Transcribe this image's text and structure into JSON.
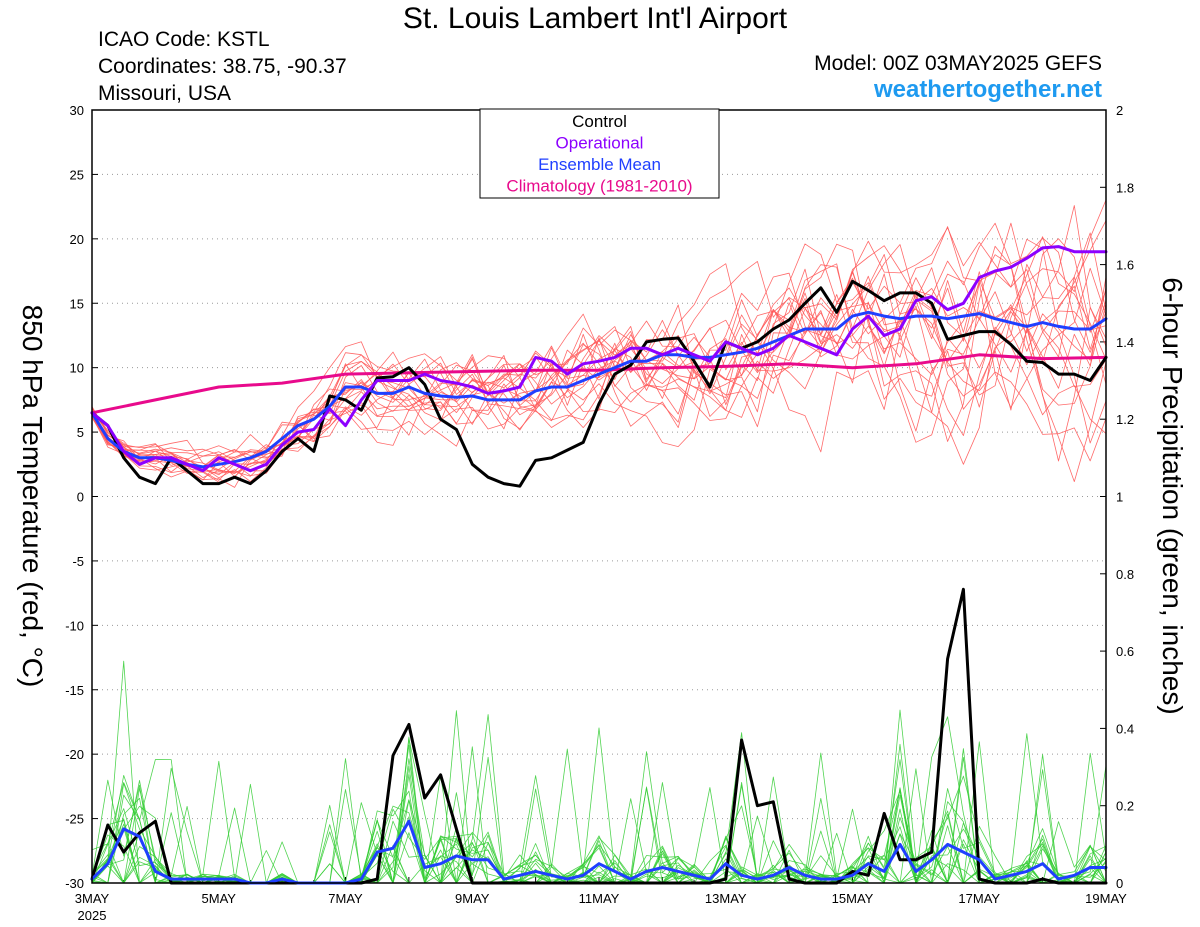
{
  "header": {
    "title": "St. Louis Lambert Int'l Airport",
    "icao": "ICAO Code: KSTL",
    "coords": "Coordinates: 38.75, -90.37",
    "region": "Missouri, USA",
    "model": "Model: 00Z 03MAY2025 GEFS",
    "site": "weathertogether.net"
  },
  "chart_data": {
    "type": "line",
    "ylabel_left": "850 hPa Temperature (red, °C)",
    "ylabel_right": "6-hour Precipitation (green, inches)",
    "x_unit": "days since 00Z 3 May 2025",
    "xlim": [
      0,
      16
    ],
    "ylim_left": [
      -30,
      30
    ],
    "ylim_right": [
      0,
      2
    ],
    "x_ticks": [
      {
        "x": 0,
        "label": "3MAY"
      },
      {
        "x": 2,
        "label": "5MAY"
      },
      {
        "x": 4,
        "label": "7MAY"
      },
      {
        "x": 6,
        "label": "9MAY"
      },
      {
        "x": 8,
        "label": "11MAY"
      },
      {
        "x": 10,
        "label": "13MAY"
      },
      {
        "x": 12,
        "label": "15MAY"
      },
      {
        "x": 14,
        "label": "17MAY"
      },
      {
        "x": 16,
        "label": "19MAY"
      }
    ],
    "x_year_label": "2025",
    "y_ticks_left": [
      "-30",
      "-25",
      "-20",
      "-15",
      "-10",
      "-5",
      "0",
      "5",
      "10",
      "15",
      "20",
      "25",
      "30"
    ],
    "y_ticks_right": [
      "0",
      "0.2",
      "0.4",
      "0.6",
      "0.8",
      "1",
      "1.2",
      "1.4",
      "1.6",
      "1.8",
      "2"
    ],
    "grid": "dotted horizontal",
    "legend": {
      "placement": "top-center",
      "entries": [
        {
          "label": "Control",
          "color": "#000000"
        },
        {
          "label": "Operational",
          "color": "#8c00ff"
        },
        {
          "label": "Ensemble Mean",
          "color": "#1f3fff"
        },
        {
          "label": "Climatology (1981-2010)",
          "color": "#e80a8c"
        }
      ]
    },
    "colors": {
      "members_temp": "#ff5a5a",
      "members_precip": "#33cc33",
      "control": "#000000",
      "operational": "#8c00ff",
      "mean": "#1f3fff",
      "climatology": "#e80a8c"
    },
    "temp_series": {
      "control": [
        [
          0,
          6.5
        ],
        [
          0.25,
          5.5
        ],
        [
          0.5,
          3
        ],
        [
          0.75,
          1.5
        ],
        [
          1,
          1
        ],
        [
          1.25,
          3
        ],
        [
          1.5,
          2
        ],
        [
          1.75,
          1
        ],
        [
          2,
          1
        ],
        [
          2.25,
          1.5
        ],
        [
          2.5,
          1
        ],
        [
          2.75,
          2
        ],
        [
          3,
          3.5
        ],
        [
          3.25,
          4.5
        ],
        [
          3.5,
          3.5
        ],
        [
          3.75,
          7.8
        ],
        [
          4,
          7.5
        ],
        [
          4.25,
          6.7
        ],
        [
          4.5,
          9.2
        ],
        [
          4.75,
          9.3
        ],
        [
          5,
          10
        ],
        [
          5.25,
          8.7
        ],
        [
          5.5,
          6
        ],
        [
          5.75,
          5.2
        ],
        [
          6,
          2.5
        ],
        [
          6.25,
          1.5
        ],
        [
          6.5,
          1
        ],
        [
          6.75,
          0.8
        ],
        [
          7,
          2.8
        ],
        [
          7.25,
          3
        ],
        [
          7.5,
          3.6
        ],
        [
          7.75,
          4.2
        ],
        [
          8,
          7.2
        ],
        [
          8.25,
          9.5
        ],
        [
          8.5,
          10.2
        ],
        [
          8.75,
          12
        ],
        [
          9,
          12.2
        ],
        [
          9.25,
          12.3
        ],
        [
          9.5,
          10.5
        ],
        [
          9.75,
          8.5
        ],
        [
          10,
          12
        ],
        [
          10.25,
          11.5
        ],
        [
          10.5,
          12
        ],
        [
          10.75,
          13
        ],
        [
          11,
          13.7
        ],
        [
          11.25,
          15
        ],
        [
          11.5,
          16.2
        ],
        [
          11.75,
          14.3
        ],
        [
          12,
          16.7
        ],
        [
          12.25,
          16
        ],
        [
          12.5,
          15.2
        ],
        [
          12.75,
          15.8
        ],
        [
          13,
          15.8
        ],
        [
          13.25,
          15
        ],
        [
          13.5,
          12.2
        ],
        [
          13.75,
          12.5
        ],
        [
          14,
          12.8
        ],
        [
          14.25,
          12.8
        ],
        [
          14.5,
          11.8
        ],
        [
          14.75,
          10.5
        ],
        [
          15,
          10.4
        ],
        [
          15.25,
          9.5
        ],
        [
          15.5,
          9.5
        ],
        [
          15.75,
          9
        ],
        [
          16,
          10.8
        ]
      ],
      "operational": [
        [
          0,
          6.5
        ],
        [
          0.25,
          5.5
        ],
        [
          0.5,
          3.5
        ],
        [
          0.75,
          2.5
        ],
        [
          1,
          3
        ],
        [
          1.25,
          3
        ],
        [
          1.5,
          2.5
        ],
        [
          1.75,
          2
        ],
        [
          2,
          3
        ],
        [
          2.25,
          2.5
        ],
        [
          2.5,
          2
        ],
        [
          2.75,
          2.5
        ],
        [
          3,
          4
        ],
        [
          3.25,
          5
        ],
        [
          3.5,
          5.2
        ],
        [
          3.75,
          6.8
        ],
        [
          4,
          5.5
        ],
        [
          4.25,
          7.5
        ],
        [
          4.5,
          9
        ],
        [
          4.75,
          9
        ],
        [
          5,
          9
        ],
        [
          5.25,
          9.5
        ],
        [
          5.5,
          9
        ],
        [
          5.75,
          8.8
        ],
        [
          6,
          8.5
        ],
        [
          6.25,
          8
        ],
        [
          6.5,
          8.2
        ],
        [
          6.75,
          8.5
        ],
        [
          7,
          10.8
        ],
        [
          7.25,
          10.5
        ],
        [
          7.5,
          9.5
        ],
        [
          7.75,
          10.3
        ],
        [
          8,
          10.5
        ],
        [
          8.25,
          10.8
        ],
        [
          8.5,
          11.5
        ],
        [
          8.75,
          11.5
        ],
        [
          9,
          11
        ],
        [
          9.25,
          11.5
        ],
        [
          9.5,
          11
        ],
        [
          9.75,
          10.5
        ],
        [
          10,
          12
        ],
        [
          10.25,
          11.5
        ],
        [
          10.5,
          11
        ],
        [
          10.75,
          11.5
        ],
        [
          11,
          12.5
        ],
        [
          11.25,
          12
        ],
        [
          11.5,
          11.5
        ],
        [
          11.75,
          11
        ],
        [
          12,
          13
        ],
        [
          12.25,
          14
        ],
        [
          12.5,
          12.5
        ],
        [
          12.75,
          13
        ],
        [
          13,
          15.2
        ],
        [
          13.25,
          15.5
        ],
        [
          13.5,
          14.5
        ],
        [
          13.75,
          15
        ],
        [
          14,
          17
        ],
        [
          14.25,
          17.5
        ],
        [
          14.5,
          17.8
        ],
        [
          14.75,
          18.5
        ],
        [
          15,
          19.3
        ],
        [
          15.25,
          19.4
        ],
        [
          15.5,
          19
        ],
        [
          15.75,
          19
        ],
        [
          16,
          19
        ]
      ],
      "mean": [
        [
          0,
          6.5
        ],
        [
          0.25,
          4.5
        ],
        [
          0.5,
          3.5
        ],
        [
          0.75,
          3
        ],
        [
          1,
          3
        ],
        [
          1.25,
          2.8
        ],
        [
          1.5,
          2.5
        ],
        [
          1.75,
          2.3
        ],
        [
          2,
          2.5
        ],
        [
          2.25,
          2.7
        ],
        [
          2.5,
          3
        ],
        [
          2.75,
          3.5
        ],
        [
          3,
          4.5
        ],
        [
          3.25,
          5.5
        ],
        [
          3.5,
          6
        ],
        [
          3.75,
          7
        ],
        [
          4,
          8.5
        ],
        [
          4.25,
          8.5
        ],
        [
          4.5,
          8
        ],
        [
          4.75,
          8
        ],
        [
          5,
          8.5
        ],
        [
          5.25,
          8
        ],
        [
          5.5,
          7.8
        ],
        [
          5.75,
          7.7
        ],
        [
          6,
          7.8
        ],
        [
          6.25,
          7.5
        ],
        [
          6.5,
          7.5
        ],
        [
          6.75,
          7.5
        ],
        [
          7,
          8.2
        ],
        [
          7.25,
          8.5
        ],
        [
          7.5,
          8.5
        ],
        [
          7.75,
          9
        ],
        [
          8,
          9.5
        ],
        [
          8.25,
          10
        ],
        [
          8.5,
          10.5
        ],
        [
          8.75,
          10.5
        ],
        [
          9,
          11
        ],
        [
          9.25,
          11
        ],
        [
          9.5,
          10.8
        ],
        [
          9.75,
          10.8
        ],
        [
          10,
          11
        ],
        [
          10.25,
          11.2
        ],
        [
          10.5,
          11.5
        ],
        [
          10.75,
          12
        ],
        [
          11,
          12.5
        ],
        [
          11.25,
          13
        ],
        [
          11.5,
          13
        ],
        [
          11.75,
          13
        ],
        [
          12,
          14
        ],
        [
          12.25,
          14.3
        ],
        [
          12.5,
          14
        ],
        [
          12.75,
          13.8
        ],
        [
          13,
          14
        ],
        [
          13.25,
          14
        ],
        [
          13.5,
          13.8
        ],
        [
          13.75,
          14
        ],
        [
          14,
          14.2
        ],
        [
          14.25,
          13.8
        ],
        [
          14.5,
          13.5
        ],
        [
          14.75,
          13.2
        ],
        [
          15,
          13.5
        ],
        [
          15.25,
          13.2
        ],
        [
          15.5,
          13
        ],
        [
          15.75,
          13
        ],
        [
          16,
          13.8
        ]
      ],
      "climatology": [
        [
          0,
          6.5
        ],
        [
          1,
          7.5
        ],
        [
          2,
          8.5
        ],
        [
          3,
          8.8
        ],
        [
          4,
          9.5
        ],
        [
          5,
          9.6
        ],
        [
          6,
          9.7
        ],
        [
          7,
          9.8
        ],
        [
          8,
          9.8
        ],
        [
          9,
          10
        ],
        [
          10,
          10.1
        ],
        [
          11,
          10.3
        ],
        [
          12,
          10
        ],
        [
          13,
          10.3
        ],
        [
          14,
          11
        ],
        [
          15,
          10.7
        ],
        [
          16,
          10.8
        ]
      ]
    },
    "precip_series": {
      "control": [
        [
          0,
          0.01
        ],
        [
          0.25,
          0.15
        ],
        [
          0.5,
          0.08
        ],
        [
          0.75,
          0.13
        ],
        [
          1,
          0.16
        ],
        [
          1.25,
          0
        ],
        [
          1.5,
          0
        ],
        [
          1.75,
          0
        ],
        [
          2,
          0
        ],
        [
          2.25,
          0
        ],
        [
          2.5,
          0
        ],
        [
          2.75,
          0
        ],
        [
          3,
          0
        ],
        [
          3.25,
          0
        ],
        [
          3.5,
          0
        ],
        [
          3.75,
          0
        ],
        [
          4,
          0
        ],
        [
          4.25,
          0
        ],
        [
          4.5,
          0.01
        ],
        [
          4.75,
          0.33
        ],
        [
          5,
          0.41
        ],
        [
          5.25,
          0.22
        ],
        [
          5.5,
          0.28
        ],
        [
          5.75,
          0.14
        ],
        [
          6,
          0
        ],
        [
          6.25,
          0
        ],
        [
          6.5,
          0
        ],
        [
          6.75,
          0
        ],
        [
          7,
          0
        ],
        [
          7.25,
          0
        ],
        [
          7.5,
          0
        ],
        [
          7.75,
          0
        ],
        [
          8,
          0
        ],
        [
          8.25,
          0
        ],
        [
          8.5,
          0
        ],
        [
          8.75,
          0
        ],
        [
          9,
          0
        ],
        [
          9.25,
          0
        ],
        [
          9.5,
          0
        ],
        [
          9.75,
          0
        ],
        [
          10,
          0.01
        ],
        [
          10.25,
          0.37
        ],
        [
          10.5,
          0.2
        ],
        [
          10.75,
          0.21
        ],
        [
          11,
          0.01
        ],
        [
          11.25,
          0
        ],
        [
          11.5,
          0
        ],
        [
          11.75,
          0
        ],
        [
          12,
          0.03
        ],
        [
          12.25,
          0.02
        ],
        [
          12.5,
          0.18
        ],
        [
          12.75,
          0.06
        ],
        [
          13,
          0.06
        ],
        [
          13.25,
          0.08
        ],
        [
          13.5,
          0.58
        ],
        [
          13.75,
          0.76
        ],
        [
          14,
          0.01
        ],
        [
          14.25,
          0
        ],
        [
          14.5,
          0
        ],
        [
          14.75,
          0
        ],
        [
          15,
          0.01
        ],
        [
          15.25,
          0
        ],
        [
          15.5,
          0
        ],
        [
          15.75,
          0
        ],
        [
          16,
          0
        ]
      ],
      "mean": [
        [
          0,
          0.01
        ],
        [
          0.25,
          0.05
        ],
        [
          0.5,
          0.14
        ],
        [
          0.75,
          0.12
        ],
        [
          1,
          0.03
        ],
        [
          1.25,
          0.01
        ],
        [
          1.5,
          0.01
        ],
        [
          1.75,
          0.01
        ],
        [
          2,
          0.01
        ],
        [
          2.25,
          0.01
        ],
        [
          2.5,
          0
        ],
        [
          2.75,
          0
        ],
        [
          3,
          0.01
        ],
        [
          3.25,
          0
        ],
        [
          3.5,
          0
        ],
        [
          3.75,
          0
        ],
        [
          4,
          0
        ],
        [
          4.25,
          0.01
        ],
        [
          4.5,
          0.08
        ],
        [
          4.75,
          0.09
        ],
        [
          5,
          0.16
        ],
        [
          5.25,
          0.04
        ],
        [
          5.5,
          0.05
        ],
        [
          5.75,
          0.07
        ],
        [
          6,
          0.06
        ],
        [
          6.25,
          0.06
        ],
        [
          6.5,
          0.01
        ],
        [
          6.75,
          0.02
        ],
        [
          7,
          0.03
        ],
        [
          7.25,
          0.02
        ],
        [
          7.5,
          0.01
        ],
        [
          7.75,
          0.02
        ],
        [
          8,
          0.05
        ],
        [
          8.25,
          0.03
        ],
        [
          8.5,
          0.01
        ],
        [
          8.75,
          0.03
        ],
        [
          9,
          0.04
        ],
        [
          9.25,
          0.03
        ],
        [
          9.5,
          0.02
        ],
        [
          9.75,
          0.01
        ],
        [
          10,
          0.05
        ],
        [
          10.25,
          0.02
        ],
        [
          10.5,
          0.01
        ],
        [
          10.75,
          0.02
        ],
        [
          11,
          0.04
        ],
        [
          11.25,
          0.02
        ],
        [
          11.5,
          0.01
        ],
        [
          11.75,
          0.01
        ],
        [
          12,
          0.02
        ],
        [
          12.25,
          0.05
        ],
        [
          12.5,
          0.03
        ],
        [
          12.75,
          0.1
        ],
        [
          13,
          0.03
        ],
        [
          13.25,
          0.06
        ],
        [
          13.5,
          0.1
        ],
        [
          13.75,
          0.08
        ],
        [
          14,
          0.06
        ],
        [
          14.25,
          0.01
        ],
        [
          14.5,
          0.02
        ],
        [
          14.75,
          0.03
        ],
        [
          15,
          0.05
        ],
        [
          15.25,
          0.01
        ],
        [
          15.5,
          0.02
        ],
        [
          15.75,
          0.04
        ],
        [
          16,
          0.04
        ]
      ]
    }
  }
}
